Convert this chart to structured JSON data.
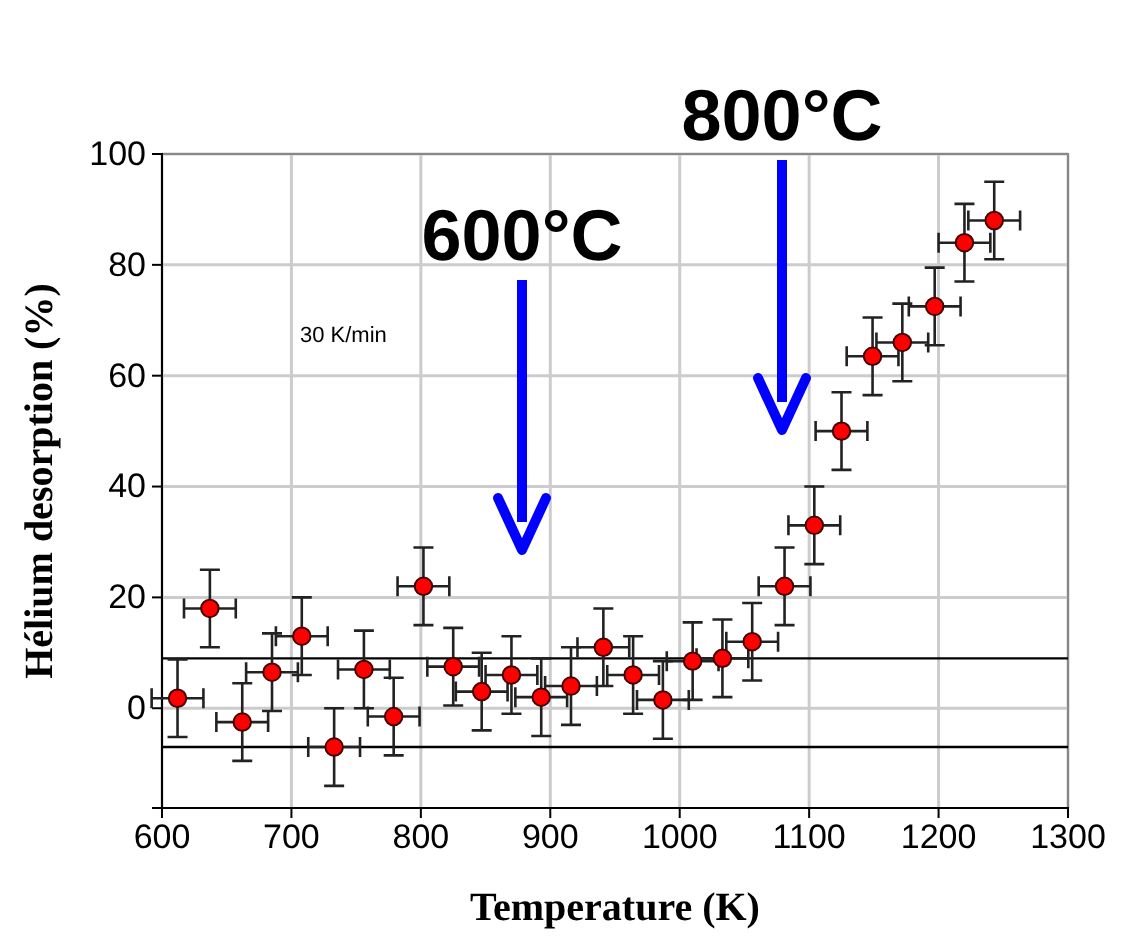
{
  "chart_data": {
    "type": "scatter",
    "xlabel": "Temperature (K)",
    "ylabel": "Hélium desorption (%)",
    "x": [
      612,
      637,
      662,
      685,
      708,
      733,
      756,
      779,
      802,
      825,
      847,
      870,
      893,
      916,
      941,
      964,
      987,
      1010,
      1033,
      1056,
      1081,
      1104,
      1125,
      1149,
      1172,
      1197,
      1220,
      1243
    ],
    "series": [
      {
        "color": "#ff0000",
        "values": [
          1.8,
          18,
          -2.5,
          6.5,
          13,
          -7,
          7,
          -1.5,
          22,
          7.5,
          3,
          6,
          2,
          4,
          11,
          6,
          1.5,
          8.5,
          9,
          12,
          22,
          33,
          50,
          63.5,
          66,
          72.5,
          84,
          88
        ],
        "errors": [
          7,
          7,
          7,
          7,
          7,
          7,
          7,
          7,
          7,
          7,
          7,
          7,
          7,
          7,
          7,
          7,
          7,
          7,
          7,
          7,
          7,
          7,
          7,
          7,
          7,
          7,
          7,
          7
        ],
        "xerrors": [
          20,
          20,
          20,
          20,
          20,
          20,
          20,
          20,
          20,
          20,
          20,
          20,
          20,
          20,
          20,
          20,
          20,
          20,
          20,
          20,
          20,
          20,
          20,
          20,
          20,
          20,
          20,
          20
        ]
      }
    ],
    "xlim": [
      600,
      1300
    ],
    "xticks": [
      600,
      700,
      800,
      900,
      1000,
      1100,
      1200,
      1300
    ],
    "ylim": [
      -18,
      100
    ],
    "yticks": [
      0,
      20,
      40,
      60,
      80,
      100
    ],
    "grid": true,
    "marker": "circle",
    "ref_lines": [
      {
        "axis": "y",
        "value": 9,
        "color": "#000000"
      },
      {
        "axis": "y",
        "value": -7,
        "color": "#000000"
      }
    ],
    "annotations": [
      "30 K/min",
      "600°C",
      "800°C"
    ]
  }
}
